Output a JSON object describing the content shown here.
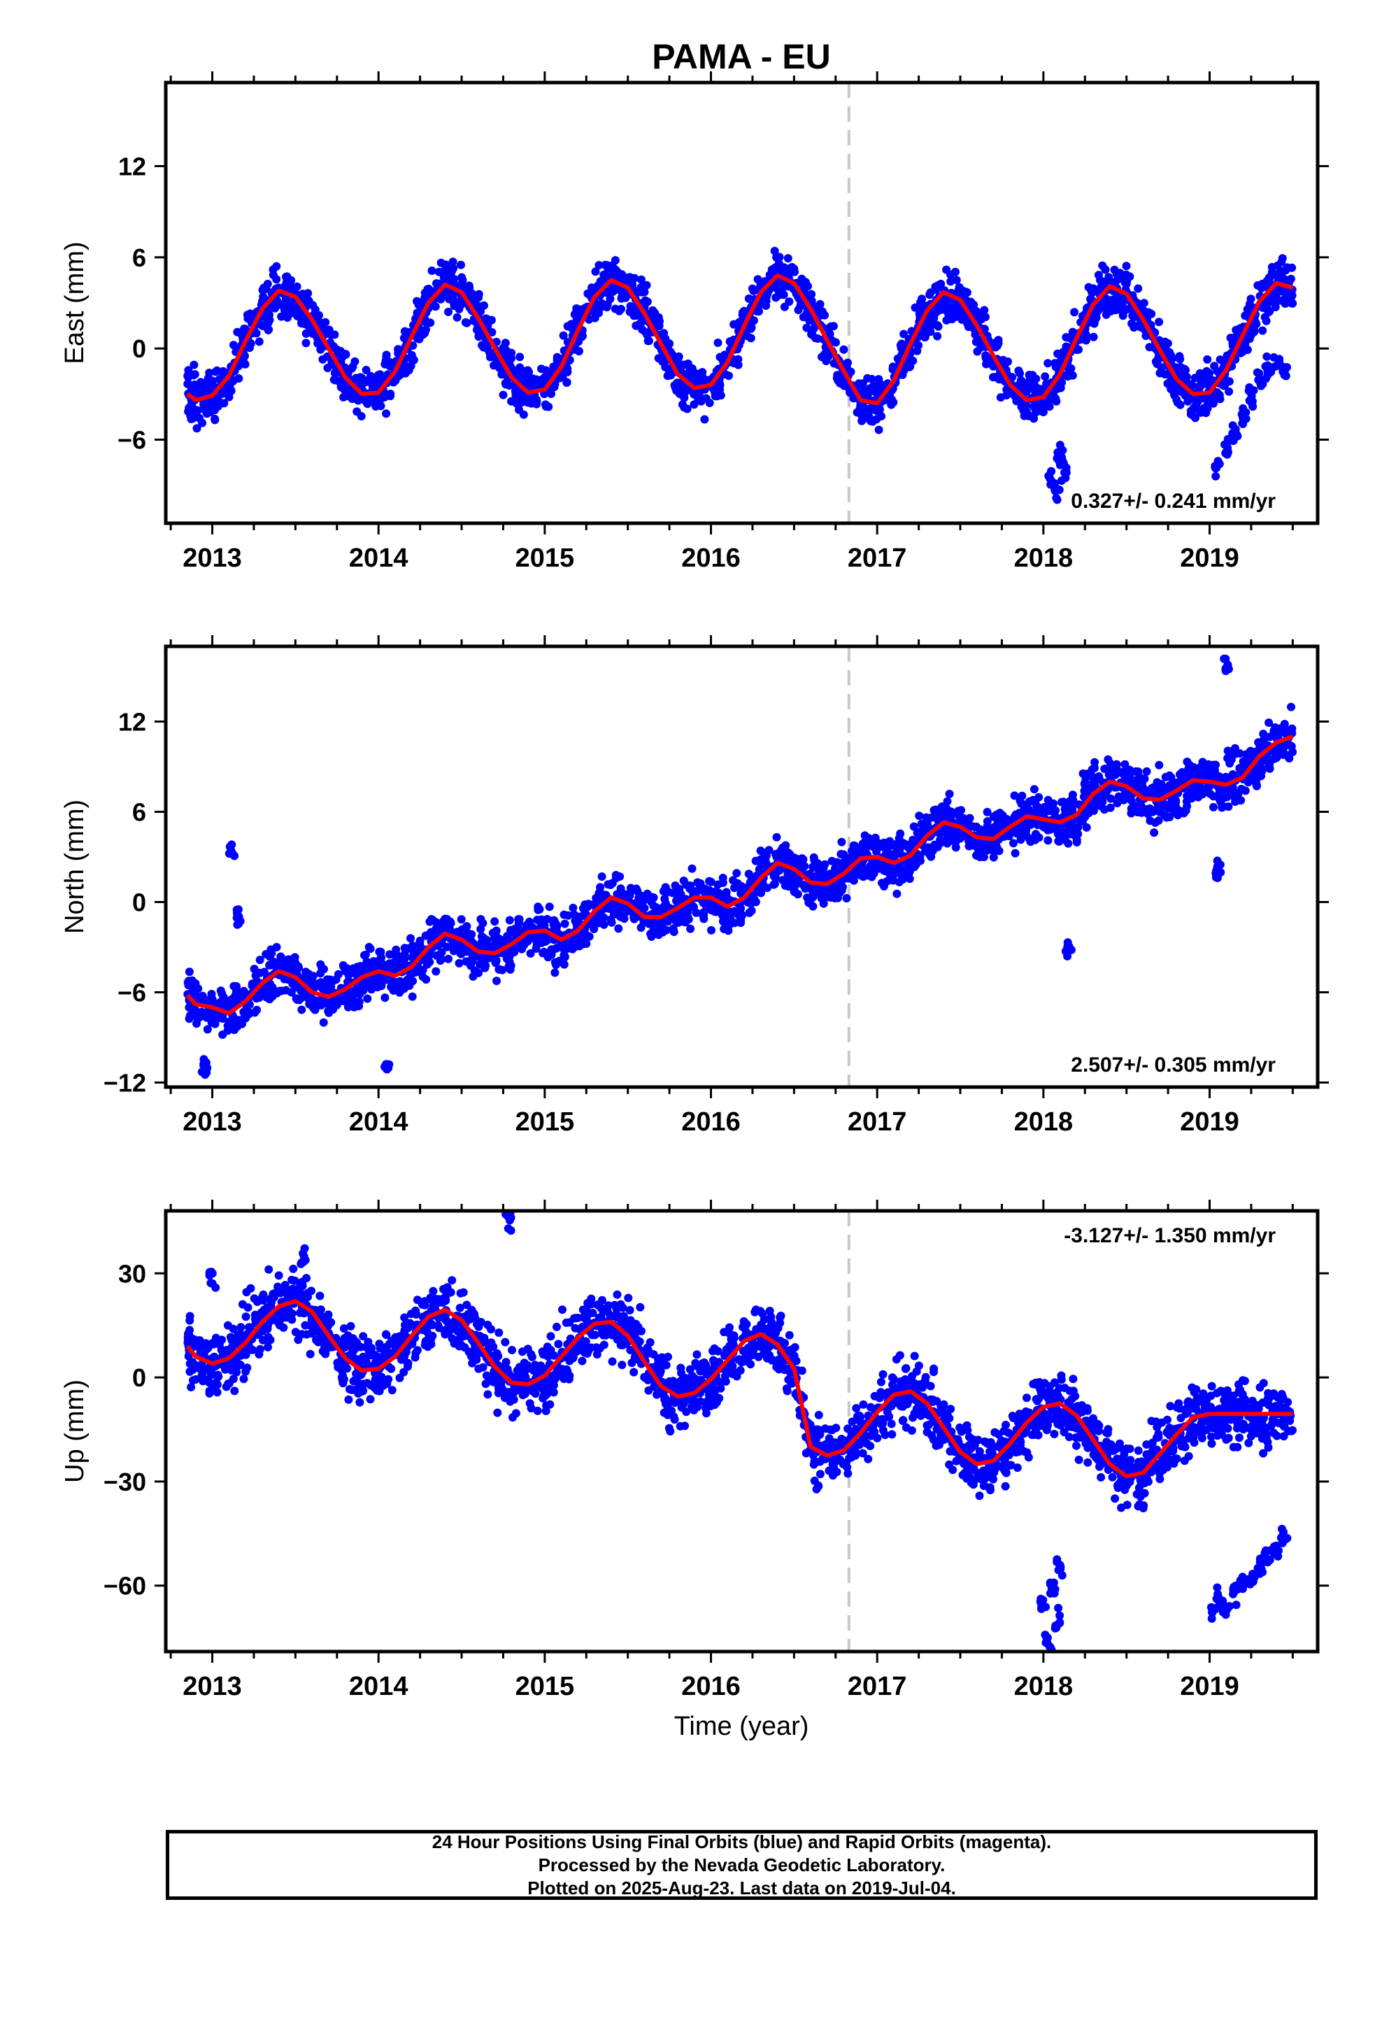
{
  "title": "PAMA - EU",
  "xlabel": "Time (year)",
  "footer": {
    "line1": "24 Hour Positions Using Final Orbits (blue) and Rapid Orbits (magenta).",
    "line2": "Processed by the Nevada Geodetic Laboratory.",
    "line3": "Plotted on 2025-Aug-23. Last data on 2019-Jul-04."
  },
  "colors": {
    "data": "#0000ff",
    "model": "#ff0000",
    "equipment_change": "#c8c8c8",
    "frame": "#000000"
  },
  "chart_data": [
    {
      "type": "scatter",
      "ylabel": "East (mm)",
      "xlim": [
        2012.72,
        2019.65
      ],
      "ylim": [
        -11.5,
        17.5
      ],
      "xticks": [
        2013,
        2014,
        2015,
        2016,
        2017,
        2018,
        2019
      ],
      "yticks": [
        -6,
        0,
        6,
        12
      ],
      "rate_label": "0.327+/- 0.241 mm/yr",
      "rate_position": "bottom-right",
      "equipment_change_year": 2016.83,
      "model": {
        "rate": 0.327,
        "annual_amplitude": 3.6,
        "annual_peak": 0.42,
        "offset_at_break": -1.2,
        "ref_year": 2016.0
      },
      "series": [
        {
          "name": "",
          "x": [
            2012.85,
            2012.9,
            2013.0,
            2013.1,
            2013.2,
            2013.3,
            2013.4,
            2013.5,
            2013.6,
            2013.7,
            2013.8,
            2013.9,
            2014.0,
            2014.1,
            2014.2,
            2014.3,
            2014.4,
            2014.5,
            2014.6,
            2014.7,
            2014.8,
            2014.9,
            2015.0,
            2015.1,
            2015.2,
            2015.3,
            2015.4,
            2015.5,
            2015.6,
            2015.7,
            2015.8,
            2015.9,
            2016.0,
            2016.1,
            2016.2,
            2016.3,
            2016.4,
            2016.5,
            2016.6,
            2016.7,
            2016.8,
            2016.9,
            2017.0,
            2017.1,
            2017.2,
            2017.3,
            2017.4,
            2017.5,
            2017.6,
            2017.7,
            2017.8,
            2017.9,
            2018.0,
            2018.1,
            2018.2,
            2018.3,
            2018.4,
            2018.5,
            2018.6,
            2018.7,
            2018.8,
            2018.9,
            2019.0,
            2019.1,
            2019.2,
            2019.3,
            2019.4,
            2019.5
          ],
          "y": [
            -3.0,
            -3.4,
            -3.1,
            -1.8,
            0.5,
            2.6,
            3.8,
            3.4,
            1.9,
            0.0,
            -1.9,
            -3.0,
            -2.9,
            -1.5,
            0.8,
            3.0,
            4.2,
            3.7,
            2.0,
            0.0,
            -1.9,
            -2.9,
            -2.7,
            -1.2,
            1.2,
            3.4,
            4.5,
            4.0,
            2.3,
            0.3,
            -1.7,
            -2.6,
            -2.4,
            -0.9,
            1.5,
            3.7,
            4.8,
            4.3,
            2.6,
            0.5,
            -1.5,
            -3.4,
            -3.6,
            -2.1,
            0.3,
            2.5,
            3.7,
            3.2,
            1.5,
            -0.5,
            -2.4,
            -3.4,
            -3.2,
            -1.7,
            0.7,
            2.9,
            4.1,
            3.6,
            1.9,
            -0.1,
            -2.0,
            -3.0,
            -2.9,
            -1.4,
            0.9,
            3.1,
            4.3,
            4.0
          ]
        },
        {
          "name": "",
          "x": [
            2018.05,
            2018.08,
            2018.1,
            2018.12,
            2019.05,
            2019.1,
            2019.15,
            2019.2,
            2019.25,
            2019.3,
            2019.35,
            2019.4,
            2019.45
          ],
          "y": [
            -8.5,
            -9.6,
            -7.2,
            -8.0,
            -7.8,
            -6.4,
            -5.5,
            -4.5,
            -3.2,
            -2.0,
            -1.4,
            -0.8,
            -1.5
          ]
        }
      ]
    },
    {
      "type": "scatter",
      "ylabel": "North (mm)",
      "xlim": [
        2012.72,
        2019.65
      ],
      "ylim": [
        -12.3,
        17.0
      ],
      "xticks": [
        2013,
        2014,
        2015,
        2016,
        2017,
        2018,
        2019
      ],
      "yticks": [
        -12,
        -6,
        0,
        6,
        12
      ],
      "rate_label": "2.507+/- 0.305 mm/yr",
      "rate_position": "bottom-right",
      "equipment_change_year": 2016.83,
      "model": {
        "rate": 2.507,
        "annual_amplitude": 1.1,
        "annual_peak": 0.5,
        "offset_at_break": 0.0,
        "ref_year": 2016.0
      },
      "series": [
        {
          "name": "",
          "x": [
            2012.85,
            2012.9,
            2013.0,
            2013.1,
            2013.2,
            2013.3,
            2013.4,
            2013.5,
            2013.6,
            2013.7,
            2013.8,
            2013.9,
            2014.0,
            2014.1,
            2014.2,
            2014.3,
            2014.4,
            2014.5,
            2014.6,
            2014.7,
            2014.8,
            2014.9,
            2015.0,
            2015.1,
            2015.2,
            2015.3,
            2015.4,
            2015.5,
            2015.6,
            2015.7,
            2015.8,
            2015.9,
            2016.0,
            2016.1,
            2016.2,
            2016.3,
            2016.4,
            2016.5,
            2016.6,
            2016.7,
            2016.8,
            2016.9,
            2017.0,
            2017.1,
            2017.2,
            2017.3,
            2017.4,
            2017.5,
            2017.6,
            2017.7,
            2017.8,
            2017.9,
            2018.0,
            2018.1,
            2018.2,
            2018.3,
            2018.4,
            2018.5,
            2018.6,
            2018.7,
            2018.8,
            2018.9,
            2019.0,
            2019.1,
            2019.2,
            2019.3,
            2019.4,
            2019.5
          ],
          "y": [
            -6.2,
            -6.8,
            -7.0,
            -7.4,
            -6.6,
            -5.4,
            -4.6,
            -5.0,
            -6.0,
            -6.3,
            -5.8,
            -5.0,
            -4.6,
            -4.9,
            -4.3,
            -3.0,
            -2.1,
            -2.5,
            -3.3,
            -3.4,
            -2.8,
            -2.0,
            -1.9,
            -2.5,
            -1.9,
            -0.6,
            0.3,
            -0.1,
            -1.0,
            -1.0,
            -0.4,
            0.3,
            0.3,
            -0.3,
            0.3,
            1.6,
            2.6,
            2.2,
            1.3,
            1.2,
            1.9,
            2.9,
            3.0,
            2.6,
            3.1,
            4.4,
            5.3,
            5.0,
            4.3,
            4.2,
            5.0,
            5.7,
            5.5,
            5.3,
            5.8,
            7.2,
            8.0,
            7.7,
            6.9,
            6.8,
            7.4,
            8.1,
            8.0,
            7.8,
            8.3,
            9.7,
            10.6,
            11.0
          ]
        },
        {
          "name": "",
          "x": [
            2012.95,
            2013.12,
            2013.15,
            2014.05,
            2018.15,
            2019.05,
            2019.1
          ],
          "y": [
            -10.8,
            3.4,
            -0.9,
            -11.0,
            -2.9,
            2.1,
            15.8
          ]
        }
      ]
    },
    {
      "type": "scatter",
      "ylabel": "Up (mm)",
      "xlabel": "Time (year)",
      "xlim": [
        2012.72,
        2019.65
      ],
      "ylim": [
        -79,
        48
      ],
      "xticks": [
        2013,
        2014,
        2015,
        2016,
        2017,
        2018,
        2019
      ],
      "yticks": [
        -60,
        -30,
        0,
        30
      ],
      "rate_label": "-3.127+/- 1.350 mm/yr",
      "rate_position": "top-right",
      "equipment_change_year": 2016.83,
      "model": {
        "rate": -3.127,
        "annual_amplitude": 9.0,
        "annual_peak": 0.58,
        "offset_at_break": -27.0,
        "ref_year": 2016.0
      },
      "series": [
        {
          "name": "",
          "x": [
            2012.85,
            2012.9,
            2013.0,
            2013.1,
            2013.2,
            2013.3,
            2013.4,
            2013.5,
            2013.6,
            2013.7,
            2013.8,
            2013.9,
            2014.0,
            2014.1,
            2014.2,
            2014.3,
            2014.4,
            2014.5,
            2014.6,
            2014.7,
            2014.8,
            2014.9,
            2015.0,
            2015.1,
            2015.2,
            2015.3,
            2015.4,
            2015.5,
            2015.6,
            2015.7,
            2015.8,
            2015.9,
            2016.0,
            2016.1,
            2016.2,
            2016.3,
            2016.4,
            2016.5,
            2016.6,
            2016.7,
            2016.8,
            2016.9,
            2017.0,
            2017.1,
            2017.2,
            2017.3,
            2017.4,
            2017.5,
            2017.6,
            2017.7,
            2017.8,
            2017.9,
            2018.0,
            2018.1,
            2018.2,
            2018.3,
            2018.4,
            2018.5,
            2018.6,
            2018.7,
            2018.8,
            2018.9,
            2019.0,
            2019.1,
            2019.2,
            2019.3,
            2019.4,
            2019.5
          ],
          "y": [
            9.0,
            6.0,
            4.0,
            5.5,
            10.0,
            16.0,
            20.5,
            22.0,
            19.0,
            12.0,
            5.5,
            2.0,
            2.5,
            6.0,
            12.0,
            17.5,
            19.5,
            16.5,
            10.0,
            3.0,
            -1.5,
            -2.0,
            0.5,
            6.0,
            11.5,
            15.5,
            16.0,
            12.0,
            4.5,
            -2.5,
            -5.5,
            -4.5,
            -0.5,
            5.0,
            10.5,
            12.5,
            9.5,
            2.5,
            -20.0,
            -22.5,
            -21.0,
            -16.0,
            -10.0,
            -5.0,
            -4.0,
            -7.5,
            -14.5,
            -21.5,
            -25.0,
            -24.0,
            -19.0,
            -13.0,
            -8.5,
            -7.5,
            -11.0,
            -18.0,
            -25.0,
            -28.5,
            -27.5,
            -22.0,
            -16.5,
            -11.5,
            -10.5,
            -10.5,
            -10.5,
            -10.5,
            -10.5,
            -10.5
          ]
        },
        {
          "name": "",
          "x": [
            2018.0,
            2018.03,
            2018.06,
            2018.08,
            2018.1,
            2019.02,
            2019.06,
            2019.1,
            2019.15,
            2019.2,
            2019.25,
            2019.3,
            2019.35,
            2019.4,
            2019.45,
            2013.0,
            2014.78,
            2013.55
          ],
          "y": [
            -66.0,
            -76.5,
            -60.0,
            -70.0,
            -55.0,
            -68.0,
            -64.0,
            -66.0,
            -62.0,
            -60.0,
            -58.0,
            -55.0,
            -52.0,
            -49.0,
            -46.0,
            28.0,
            46.0,
            34.0
          ]
        }
      ]
    }
  ]
}
